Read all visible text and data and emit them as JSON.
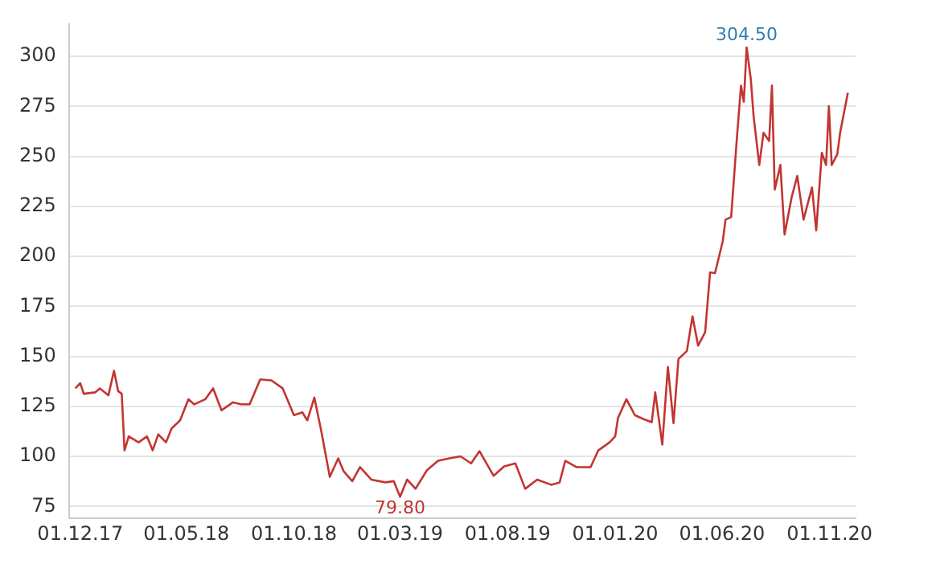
{
  "chart_data": {
    "type": "line",
    "x": [
      "2017-11-24",
      "2017-12-01",
      "2017-12-06",
      "2017-12-22",
      "2017-12-29",
      "2018-01-10",
      "2018-01-18",
      "2018-01-24",
      "2018-01-29",
      "2018-02-02",
      "2018-02-08",
      "2018-02-22",
      "2018-03-06",
      "2018-03-14",
      "2018-03-22",
      "2018-04-02",
      "2018-04-10",
      "2018-04-22",
      "2018-05-04",
      "2018-05-12",
      "2018-05-28",
      "2018-06-08",
      "2018-06-20",
      "2018-07-06",
      "2018-07-18",
      "2018-07-30",
      "2018-08-14",
      "2018-08-30",
      "2018-09-15",
      "2018-10-01",
      "2018-10-13",
      "2018-10-20",
      "2018-10-30",
      "2018-11-09",
      "2018-11-21",
      "2018-12-03",
      "2018-12-11",
      "2018-12-23",
      "2019-01-03",
      "2019-01-19",
      "2019-02-08",
      "2019-02-20",
      "2019-03-01",
      "2019-03-11",
      "2019-03-23",
      "2019-04-08",
      "2019-04-24",
      "2019-05-10",
      "2019-05-26",
      "2019-06-10",
      "2019-06-22",
      "2019-07-12",
      "2019-07-27",
      "2019-08-12",
      "2019-08-26",
      "2019-09-12",
      "2019-10-02",
      "2019-10-14",
      "2019-10-22",
      "2019-11-07",
      "2019-11-27",
      "2019-12-08",
      "2019-12-24",
      "2020-01-01",
      "2020-01-05",
      "2020-01-17",
      "2020-01-29",
      "2020-02-10",
      "2020-02-22",
      "2020-02-27",
      "2020-03-08",
      "2020-03-16",
      "2020-03-24",
      "2020-03-31",
      "2020-04-12",
      "2020-04-20",
      "2020-04-28",
      "2020-05-08",
      "2020-05-15",
      "2020-05-22",
      "2020-06-02",
      "2020-06-06",
      "2020-06-14",
      "2020-06-22",
      "2020-06-28",
      "2020-07-02",
      "2020-07-06",
      "2020-07-12",
      "2020-07-16",
      "2020-07-24",
      "2020-07-30",
      "2020-08-07",
      "2020-08-11",
      "2020-08-15",
      "2020-08-23",
      "2020-08-29",
      "2020-09-08",
      "2020-09-16",
      "2020-09-25",
      "2020-10-07",
      "2020-10-13",
      "2020-10-21",
      "2020-10-27",
      "2020-10-31",
      "2020-11-04",
      "2020-11-12",
      "2020-11-16",
      "2020-11-27"
    ],
    "series": [
      {
        "color": "#c23531",
        "values": [
          134,
          136.6,
          131.3,
          132,
          134,
          130.5,
          142.8,
          132.6,
          131.3,
          103,
          110,
          107,
          110,
          103,
          111,
          107,
          114,
          118,
          128.6,
          126,
          128.6,
          134,
          123,
          127,
          126,
          126,
          138.5,
          138,
          134,
          120.6,
          122,
          118,
          129.4,
          112.5,
          89.8,
          99,
          92.4,
          87.6,
          94.6,
          88.4,
          87,
          87.6,
          79.8,
          88.4,
          83.8,
          93,
          97.8,
          99,
          100,
          96.5,
          102.6,
          90.3,
          95,
          96.5,
          83.8,
          88.4,
          85.8,
          87,
          97.8,
          94.6,
          94.6,
          103,
          107,
          110,
          119.2,
          128.6,
          120.6,
          118.7,
          117.1,
          132,
          105.9,
          144.7,
          116.6,
          148.7,
          152.7,
          170,
          155.4,
          162.1,
          192,
          191.6,
          207.6,
          218.4,
          219.7,
          258.6,
          285.4,
          277.3,
          304.5,
          288.5,
          269.8,
          245.7,
          261.8,
          257.7,
          285.4,
          233.4,
          245.7,
          210.9,
          229.5,
          240.2,
          218.4,
          234.5,
          213,
          251.8,
          245.7,
          275.2,
          245.7,
          251.1,
          261.8,
          281.8
        ]
      }
    ],
    "xlim": [
      "2017-11-15",
      "2020-12-08"
    ],
    "xticks": [
      {
        "value": "2017-12-01",
        "label": "01.12.17"
      },
      {
        "value": "2018-05-01",
        "label": "01.05.18"
      },
      {
        "value": "2018-10-01",
        "label": "01.10.18"
      },
      {
        "value": "2019-03-01",
        "label": "01.03.19"
      },
      {
        "value": "2019-08-01",
        "label": "01.08.19"
      },
      {
        "value": "2020-01-01",
        "label": "01.01.20"
      },
      {
        "value": "2020-06-01",
        "label": "01.06.20"
      },
      {
        "value": "2020-11-01",
        "label": "01.11.20"
      }
    ],
    "ylim": [
      69,
      316
    ],
    "yticks": [
      75,
      100,
      125,
      150,
      175,
      200,
      225,
      250,
      275,
      300
    ],
    "grid": "y",
    "legend": false,
    "marker": "none",
    "line_style": "solid",
    "annotations": [
      {
        "text": "304.50",
        "x": "2020-07-06",
        "y": 304.5
      },
      {
        "text": "79.80",
        "x": "2019-03-01",
        "y": 79.8
      }
    ]
  }
}
